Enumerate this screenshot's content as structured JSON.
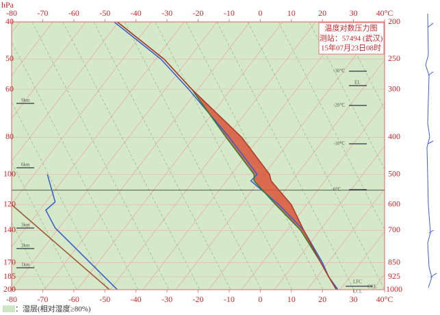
{
  "chart_data": {
    "type": "skewt",
    "title": "温度对数压力图",
    "station": "测站：57494 (武汉)",
    "time": "15年07月23日08时",
    "y_label": "hPa",
    "legend": {
      "label": "：湿层(相对湿度≥80%)",
      "color": "#cfe6c4"
    },
    "xlim": [
      -80,
      40
    ],
    "xticks": [
      -80,
      -70,
      -60,
      -50,
      -40,
      -30,
      -20,
      -10,
      0,
      10,
      20,
      30,
      {
        "value": 40,
        "label": "40°C"
      }
    ],
    "ylim": [
      40,
      200
    ],
    "yticks": [
      40,
      50,
      60,
      80,
      100,
      120,
      140,
      170,
      185,
      200
    ],
    "y2lim": [
      200,
      1000
    ],
    "y2ticks": [
      200,
      250,
      300,
      400,
      500,
      600,
      700,
      850,
      925,
      1000
    ],
    "log_y": true,
    "y_reversed": true,
    "grid": true,
    "series": [
      {
        "color": "#3a5fcd",
        "pressure": [
          200,
          250,
          300,
          400,
          500,
          520,
          600,
          700,
          850,
          925,
          1000
        ],
        "values": [
          -47,
          -32,
          -23,
          -10,
          -1,
          -3,
          6,
          14,
          20,
          22,
          25
        ]
      },
      {
        "color": "#2e7d32",
        "pressure": [
          200,
          250,
          300,
          400,
          500,
          520,
          600,
          700,
          850,
          925,
          1000
        ],
        "values": [
          -46,
          -31,
          -22,
          -11,
          -2,
          -2,
          5,
          13,
          19.5,
          22,
          24.5
        ]
      },
      {
        "color": "#b03a2e",
        "pressure": [
          200,
          250,
          300,
          400,
          500,
          520,
          600,
          700,
          850,
          925,
          1000
        ],
        "values": [
          -46,
          -31,
          -22,
          -6,
          3,
          3.5,
          10,
          14,
          19.5,
          22,
          24.5
        ]
      },
      {
        "color": "#3a5fcd",
        "pressure": [
          500,
          590,
          620,
          690,
          1000
        ],
        "values": [
          -68.5,
          -66,
          -69,
          -66,
          -46
        ]
      },
      {
        "color": "#9c5a3c",
        "pressure": [
          600,
          1000
        ],
        "values": [
          -80,
          -48.5
        ]
      }
    ],
    "fill": {
      "color": "#d9553a",
      "between": [
        1,
        2
      ]
    },
    "level_line": 550,
    "isotherm_labels": [
      "-30℃",
      "-20℃",
      "-10℃",
      "0℃"
    ],
    "level_labels": [
      "EL",
      "LFC",
      "CCL",
      "LCL"
    ],
    "height_labels": [
      "9km",
      "6km",
      "3km",
      "2km",
      "1km"
    ]
  }
}
